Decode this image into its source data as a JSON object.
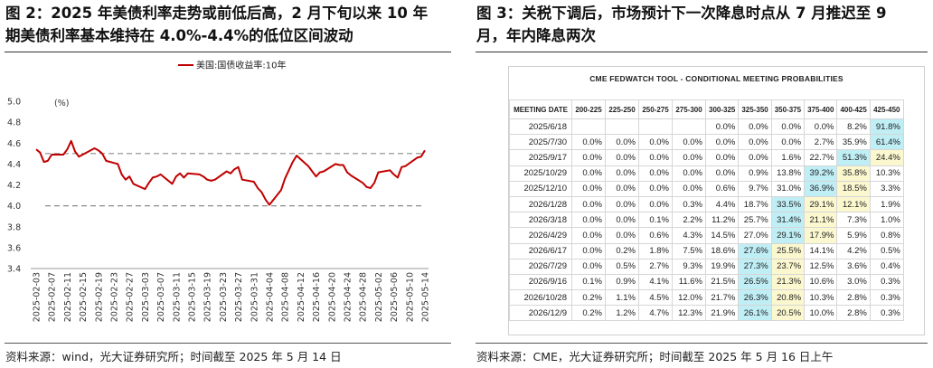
{
  "left": {
    "title_line1": "图 2：2025 年美债利率走势或前低后高，2 月下旬以来 10 年",
    "title_line2": "期美债利率基本维持在 4.0%-4.4%的低位区间波动",
    "source": "资料来源：wind，光大证券研究所；时间截至 2025 年 5 月 14 日"
  },
  "right": {
    "title_line1": "图 3：关税下调后，市场预计下一次降息时点从 7 月推迟至 9",
    "title_line2": "月，年内降息两次",
    "source": "资料来源：CME，光大证券研究所；时间截至 2025 年 5 月 16 日上午"
  },
  "colors": {
    "line": "#c00000",
    "dash": "#8c8c8c",
    "highlight_blue": "#bfeef5",
    "highlight_yellow": "#fbf8cf"
  },
  "chart_data": [
    {
      "type": "line",
      "legend": "美国:国债收益率:10年",
      "legend_placement": "top-right",
      "ylabel": "(%)",
      "ylim": [
        3.4,
        5.0
      ],
      "yticks": [
        "5.0",
        "4.8",
        "4.6",
        "4.4",
        "4.2",
        "4.0",
        "3.8",
        "3.6",
        "3.4"
      ],
      "xticks": [
        "2025-02-03",
        "2025-02-07",
        "2025-02-11",
        "2025-02-15",
        "2025-02-19",
        "2025-02-23",
        "2025-02-27",
        "2025-03-03",
        "2025-03-07",
        "2025-03-11",
        "2025-03-15",
        "2025-03-19",
        "2025-03-23",
        "2025-03-27",
        "2025-03-31",
        "2025-04-04",
        "2025-04-08",
        "2025-04-12",
        "2025-04-16",
        "2025-04-20",
        "2025-04-24",
        "2025-04-28",
        "2025-05-02",
        "2025-05-06",
        "2025-05-10",
        "2025-05-14"
      ],
      "reference_lines": [
        4.5,
        4.0
      ],
      "x": [
        "2025-02-03",
        "2025-02-04",
        "2025-02-05",
        "2025-02-06",
        "2025-02-07",
        "2025-02-10",
        "2025-02-11",
        "2025-02-12",
        "2025-02-13",
        "2025-02-14",
        "2025-02-18",
        "2025-02-19",
        "2025-02-20",
        "2025-02-21",
        "2025-02-24",
        "2025-02-25",
        "2025-02-26",
        "2025-02-27",
        "2025-02-28",
        "2025-03-03",
        "2025-03-04",
        "2025-03-05",
        "2025-03-06",
        "2025-03-07",
        "2025-03-10",
        "2025-03-11",
        "2025-03-12",
        "2025-03-13",
        "2025-03-14",
        "2025-03-17",
        "2025-03-18",
        "2025-03-19",
        "2025-03-20",
        "2025-03-21",
        "2025-03-24",
        "2025-03-25",
        "2025-03-26",
        "2025-03-27",
        "2025-03-28",
        "2025-03-31",
        "2025-04-01",
        "2025-04-02",
        "2025-04-03",
        "2025-04-04",
        "2025-04-07",
        "2025-04-08",
        "2025-04-09",
        "2025-04-10",
        "2025-04-11",
        "2025-04-14",
        "2025-04-15",
        "2025-04-16",
        "2025-04-17",
        "2025-04-18",
        "2025-04-21",
        "2025-04-22",
        "2025-04-23",
        "2025-04-24",
        "2025-04-25",
        "2025-04-28",
        "2025-04-29",
        "2025-04-30",
        "2025-05-01",
        "2025-05-02",
        "2025-05-05",
        "2025-05-06",
        "2025-05-07",
        "2025-05-08",
        "2025-05-09",
        "2025-05-12",
        "2025-05-13",
        "2025-05-14"
      ],
      "values": [
        4.54,
        4.51,
        4.42,
        4.43,
        4.49,
        4.49,
        4.54,
        4.62,
        4.52,
        4.47,
        4.55,
        4.53,
        4.5,
        4.43,
        4.4,
        4.3,
        4.25,
        4.28,
        4.21,
        4.16,
        4.22,
        4.27,
        4.28,
        4.3,
        4.21,
        4.28,
        4.31,
        4.27,
        4.31,
        4.3,
        4.28,
        4.25,
        4.24,
        4.25,
        4.33,
        4.31,
        4.35,
        4.37,
        4.25,
        4.23,
        4.17,
        4.13,
        4.06,
        4.01,
        4.15,
        4.26,
        4.34,
        4.42,
        4.48,
        4.38,
        4.33,
        4.28,
        4.32,
        4.33,
        4.4,
        4.39,
        4.39,
        4.32,
        4.29,
        4.22,
        4.18,
        4.17,
        4.22,
        4.32,
        4.34,
        4.3,
        4.27,
        4.37,
        4.38,
        4.46,
        4.47,
        4.53
      ]
    },
    {
      "type": "table",
      "title": "CME FEDWATCH TOOL - CONDITIONAL MEETING PROBABILITIES",
      "columns": [
        "MEETING DATE",
        "200-225",
        "225-250",
        "250-275",
        "275-300",
        "300-325",
        "325-350",
        "350-375",
        "375-400",
        "400-425",
        "425-450"
      ],
      "rows": [
        {
          "date": "2025/6/18",
          "cells": [
            "",
            "",
            "",
            "",
            "0.0%",
            "0.0%",
            "0.0%",
            "0.0%",
            "8.2%",
            "91.8%"
          ],
          "blue": [
            9
          ],
          "yellow": []
        },
        {
          "date": "2025/7/30",
          "cells": [
            "0.0%",
            "0.0%",
            "0.0%",
            "0.0%",
            "0.0%",
            "0.0%",
            "0.0%",
            "2.7%",
            "35.9%",
            "61.4%"
          ],
          "blue": [
            9
          ],
          "yellow": []
        },
        {
          "date": "2025/9/17",
          "cells": [
            "0.0%",
            "0.0%",
            "0.0%",
            "0.0%",
            "0.0%",
            "0.0%",
            "1.6%",
            "22.7%",
            "51.3%",
            "24.4%"
          ],
          "blue": [
            8
          ],
          "yellow": [
            9
          ]
        },
        {
          "date": "2025/10/29",
          "cells": [
            "0.0%",
            "0.0%",
            "0.0%",
            "0.0%",
            "0.0%",
            "0.9%",
            "13.8%",
            "39.2%",
            "35.8%",
            "10.3%"
          ],
          "blue": [
            7
          ],
          "yellow": [
            8
          ]
        },
        {
          "date": "2025/12/10",
          "cells": [
            "0.0%",
            "0.0%",
            "0.0%",
            "0.0%",
            "0.6%",
            "9.7%",
            "31.0%",
            "36.9%",
            "18.5%",
            "3.3%"
          ],
          "blue": [
            7
          ],
          "yellow": [
            8
          ]
        },
        {
          "date": "2026/1/28",
          "cells": [
            "0.0%",
            "0.0%",
            "0.0%",
            "0.3%",
            "4.4%",
            "18.7%",
            "33.5%",
            "29.1%",
            "12.1%",
            "1.9%"
          ],
          "blue": [
            6
          ],
          "yellow": [
            7,
            8
          ]
        },
        {
          "date": "2026/3/18",
          "cells": [
            "0.0%",
            "0.0%",
            "0.1%",
            "2.2%",
            "11.2%",
            "25.7%",
            "31.4%",
            "21.1%",
            "7.3%",
            "1.0%"
          ],
          "blue": [
            6
          ],
          "yellow": [
            7
          ]
        },
        {
          "date": "2026/4/29",
          "cells": [
            "0.0%",
            "0.0%",
            "0.6%",
            "4.3%",
            "14.5%",
            "27.0%",
            "29.1%",
            "17.9%",
            "5.9%",
            "0.8%"
          ],
          "blue": [
            6
          ],
          "yellow": [
            7
          ]
        },
        {
          "date": "2026/6/17",
          "cells": [
            "0.0%",
            "0.2%",
            "1.8%",
            "7.5%",
            "18.6%",
            "27.6%",
            "25.5%",
            "14.1%",
            "4.2%",
            "0.5%"
          ],
          "blue": [
            5
          ],
          "yellow": [
            6
          ]
        },
        {
          "date": "2026/7/29",
          "cells": [
            "0.0%",
            "0.5%",
            "2.7%",
            "9.3%",
            "19.9%",
            "27.3%",
            "23.7%",
            "12.5%",
            "3.6%",
            "0.4%"
          ],
          "blue": [
            5
          ],
          "yellow": [
            6
          ]
        },
        {
          "date": "2026/9/16",
          "cells": [
            "0.1%",
            "0.9%",
            "4.1%",
            "11.6%",
            "21.5%",
            "26.5%",
            "21.3%",
            "10.6%",
            "3.0%",
            "0.3%"
          ],
          "blue": [
            5
          ],
          "yellow": [
            6
          ]
        },
        {
          "date": "2026/10/28",
          "cells": [
            "0.2%",
            "1.1%",
            "4.5%",
            "12.0%",
            "21.7%",
            "26.3%",
            "20.8%",
            "10.3%",
            "2.8%",
            "0.3%"
          ],
          "blue": [
            5
          ],
          "yellow": [
            6
          ]
        },
        {
          "date": "2026/12/9",
          "cells": [
            "0.2%",
            "1.2%",
            "4.7%",
            "12.3%",
            "21.9%",
            "26.1%",
            "20.5%",
            "10.0%",
            "2.8%",
            "0.3%"
          ],
          "blue": [
            5
          ],
          "yellow": [
            6
          ]
        }
      ]
    }
  ]
}
